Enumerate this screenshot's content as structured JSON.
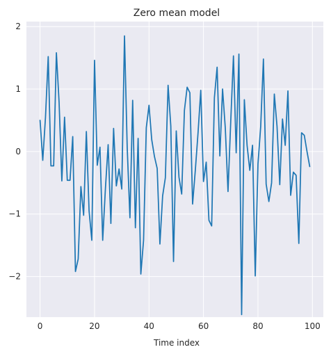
{
  "chart_data": {
    "type": "line",
    "title": "Zero mean model",
    "xlabel": "Time index",
    "ylabel": "",
    "xlim": [
      -5,
      104
    ],
    "ylim": [
      -2.65,
      2.08
    ],
    "xticks": [
      0,
      20,
      40,
      60,
      80,
      100
    ],
    "yticks": [
      -2,
      -1,
      0,
      1,
      2
    ],
    "xtick_labels": [
      "0",
      "20",
      "40",
      "60",
      "80",
      "100"
    ],
    "ytick_labels": [
      "−2",
      "−1",
      "0",
      "1",
      "2"
    ],
    "grid": true,
    "legend": "none",
    "colors": {
      "line": "#1f77b4",
      "plot_bg": "#eaeaf2",
      "grid": "#ffffff"
    },
    "series": [
      {
        "x": [
          0,
          1,
          2,
          3,
          4,
          5,
          6,
          7,
          8,
          9,
          10,
          11,
          12,
          13,
          14,
          15,
          16,
          17,
          18,
          19,
          20,
          21,
          22,
          23,
          24,
          25,
          26,
          27,
          28,
          29,
          30,
          31,
          32,
          33,
          34,
          35,
          36,
          37,
          38,
          39,
          40,
          41,
          42,
          43,
          44,
          45,
          46,
          47,
          48,
          49,
          50,
          51,
          52,
          53,
          54,
          55,
          56,
          57,
          58,
          59,
          60,
          61,
          62,
          63,
          64,
          65,
          66,
          67,
          68,
          69,
          70,
          71,
          72,
          73,
          74,
          75,
          76,
          77,
          78,
          79,
          80,
          81,
          82,
          83,
          84,
          85,
          86,
          87,
          88,
          89,
          90,
          91,
          92,
          93,
          94,
          95,
          96,
          97,
          98,
          99
        ],
        "values": [
          0.5,
          -0.14,
          0.55,
          1.52,
          -0.23,
          -0.23,
          1.58,
          0.78,
          -0.47,
          0.55,
          -0.46,
          -0.46,
          0.24,
          -1.92,
          -1.72,
          -0.56,
          -1.02,
          0.32,
          -0.95,
          -1.42,
          1.46,
          -0.22,
          0.07,
          -1.42,
          -0.59,
          0.11,
          -1.15,
          0.37,
          -0.55,
          -0.28,
          -0.6,
          1.85,
          0.06,
          -1.06,
          0.82,
          -1.22,
          0.21,
          -1.96,
          -1.42,
          0.38,
          0.74,
          0.19,
          -0.08,
          -0.27,
          -1.48,
          -0.71,
          -0.42,
          1.06,
          0.41,
          -1.76,
          0.33,
          -0.41,
          -0.68,
          0.66,
          1.03,
          0.94,
          -0.84,
          -0.3,
          0.3,
          0.98,
          -0.48,
          -0.17,
          -1.1,
          -1.19,
          0.86,
          1.35,
          -0.07,
          1.0,
          0.38,
          -0.64,
          0.48,
          1.53,
          -0.02,
          1.56,
          -2.61,
          0.83,
          0.1,
          -0.3,
          0.1,
          -1.99,
          -0.2,
          0.4,
          1.48,
          -0.52,
          -0.8,
          -0.5,
          0.92,
          0.4,
          -0.53,
          0.52,
          0.1,
          0.97,
          -0.7,
          -0.33,
          -0.38,
          -1.47,
          0.3,
          0.26,
          0.0,
          -0.24
        ]
      }
    ]
  }
}
